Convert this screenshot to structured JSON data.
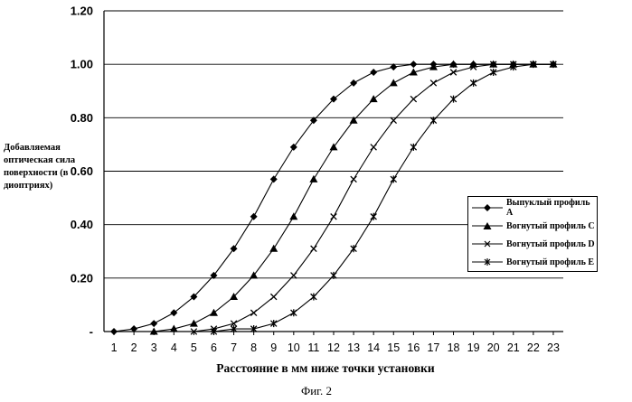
{
  "chart_data": {
    "type": "line",
    "title": "",
    "xlabel": "Расстояние в мм ниже точки  установки",
    "ylabel": "Добавляемая оптическая сила поверхности (в диоптриях)",
    "x": [
      1,
      2,
      3,
      4,
      5,
      6,
      7,
      8,
      9,
      10,
      11,
      12,
      13,
      14,
      15,
      16,
      17,
      18,
      19,
      20,
      21,
      22,
      23
    ],
    "ylim": [
      0,
      1.2
    ],
    "xlim": [
      0.5,
      23.5
    ],
    "y_ticks": [
      "-",
      "0.20",
      "0.40",
      "0.60",
      "0.80",
      "1.00",
      "1.20"
    ],
    "x_ticks": [
      "1",
      "2",
      "3",
      "4",
      "5",
      "6",
      "7",
      "8",
      "9",
      "10",
      "11",
      "12",
      "13",
      "14",
      "15",
      "16",
      "17",
      "18",
      "19",
      "20",
      "21",
      "22",
      "23"
    ],
    "grid": "horizontal",
    "legend_position": "right",
    "series": [
      {
        "name": "Выпуклый профиль A",
        "marker": "diamond",
        "x": [
          1,
          2,
          3,
          4,
          5,
          6,
          7,
          8,
          9,
          10,
          11,
          12,
          13,
          14,
          15,
          16,
          17,
          18,
          19,
          20,
          21,
          22,
          23
        ],
        "values": [
          0.0,
          0.01,
          0.03,
          0.07,
          0.13,
          0.21,
          0.31,
          0.43,
          0.57,
          0.69,
          0.79,
          0.87,
          0.93,
          0.97,
          0.99,
          1.0,
          1.0,
          1.0,
          1.0,
          1.0,
          1.0,
          1.0,
          1.0
        ]
      },
      {
        "name": "Вогнутый  профиль C",
        "marker": "triangle",
        "x": [
          3,
          4,
          5,
          6,
          7,
          8,
          9,
          10,
          11,
          12,
          13,
          14,
          15,
          16,
          17,
          18,
          19,
          20,
          21,
          22,
          23
        ],
        "values": [
          0.0,
          0.01,
          0.03,
          0.07,
          0.13,
          0.21,
          0.31,
          0.43,
          0.57,
          0.69,
          0.79,
          0.87,
          0.93,
          0.97,
          0.99,
          1.0,
          1.0,
          1.0,
          1.0,
          1.0,
          1.0
        ]
      },
      {
        "name": "Вогнутый профиль D",
        "marker": "x",
        "x": [
          5,
          6,
          7,
          8,
          9,
          10,
          11,
          12,
          13,
          14,
          15,
          16,
          17,
          18,
          19,
          20,
          21,
          22,
          23
        ],
        "values": [
          0.0,
          0.01,
          0.03,
          0.07,
          0.13,
          0.21,
          0.31,
          0.43,
          0.57,
          0.69,
          0.79,
          0.87,
          0.93,
          0.97,
          0.99,
          1.0,
          1.0,
          1.0,
          1.0
        ]
      },
      {
        "name": "Вогнутый профиль E",
        "marker": "star",
        "x": [
          6,
          7,
          8,
          9,
          10,
          11,
          12,
          13,
          14,
          15,
          16,
          17,
          18,
          19,
          20,
          21,
          22,
          23
        ],
        "values": [
          0.0,
          0.01,
          0.01,
          0.03,
          0.07,
          0.13,
          0.21,
          0.31,
          0.43,
          0.57,
          0.69,
          0.79,
          0.87,
          0.93,
          0.97,
          0.99,
          1.0,
          1.0
        ]
      }
    ]
  },
  "caption": "Фиг. 2"
}
